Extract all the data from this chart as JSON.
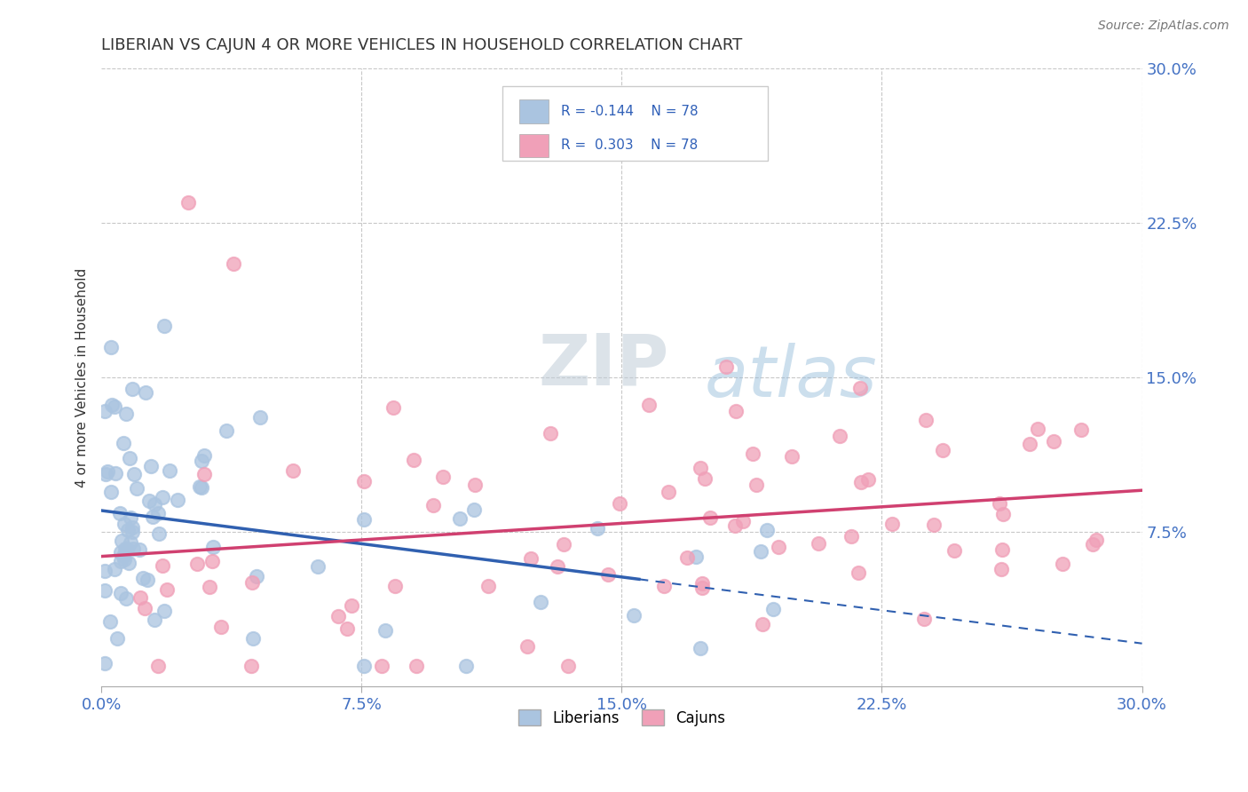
{
  "title": "LIBERIAN VS CAJUN 4 OR MORE VEHICLES IN HOUSEHOLD CORRELATION CHART",
  "source": "Source: ZipAtlas.com",
  "ylabel": "4 or more Vehicles in Household",
  "xlim": [
    0.0,
    0.3
  ],
  "ylim": [
    0.0,
    0.3
  ],
  "liberian_color": "#aac4e0",
  "cajun_color": "#f0a0b8",
  "liberian_R": -0.144,
  "cajun_R": 0.303,
  "N": 78,
  "liberian_label": "Liberians",
  "cajun_label": "Cajuns",
  "trend_line_liberian_color": "#3060b0",
  "trend_line_cajun_color": "#d04070",
  "watermark_zip": "ZIP",
  "watermark_atlas": "atlas",
  "background_color": "#ffffff",
  "grid_color": "#c8c8c8",
  "scatter_size": 120,
  "tick_color": "#4472c4",
  "title_color": "#333333",
  "source_color": "#777777",
  "ylabel_color": "#333333"
}
